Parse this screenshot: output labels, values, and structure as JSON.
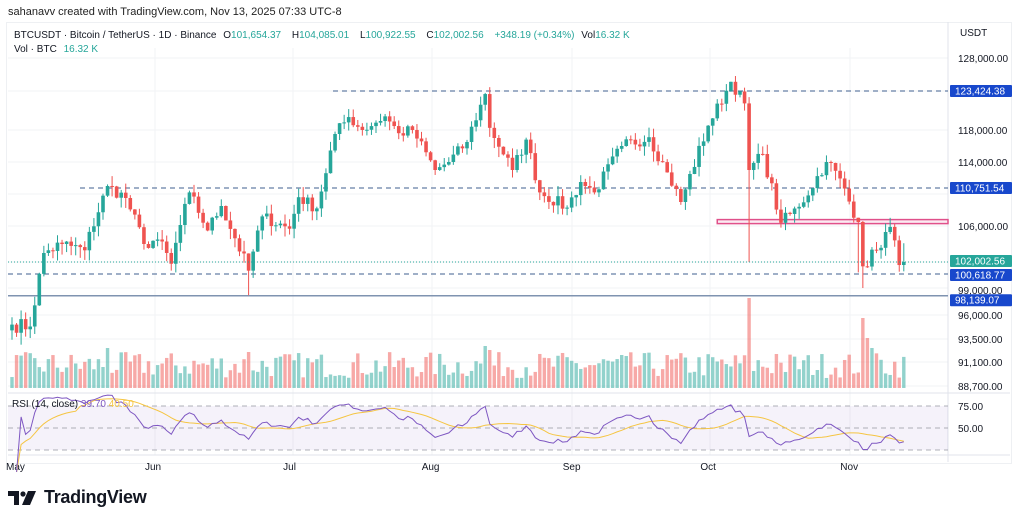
{
  "credit": "sahanavv created with TradingView.com, Nov 13, 2025 07:33 UTC-8",
  "legend": {
    "symbol": "BTCUSDT · Bitcoin / TetherUS · 1D · Binance",
    "o_label": "O",
    "o": "101,654.37",
    "h_label": "H",
    "h": "104,085.01",
    "l_label": "L",
    "l": "100,922.55",
    "c_label": "C",
    "c": "102,002.56",
    "change": "+348.19 (+0.34%)",
    "vol_label": "Vol",
    "vol": "16.32 K",
    "vol_row_label": "Vol · BTC",
    "vol_row_value": "16.32 K"
  },
  "rsi": {
    "label": "RSI (14, close)",
    "value": "39.70",
    "ma_value": "40.50",
    "line_color": "#7e57c2",
    "ma_color": "#f5c542"
  },
  "logo_text": "TradingView",
  "chart_data": {
    "type": "candlestick",
    "currency_label": "USDT",
    "x_tick_labels": [
      "May",
      "Jun",
      "Jul",
      "Aug",
      "Sep",
      "Oct",
      "Nov"
    ],
    "y_tick_labels": [
      "128,000.00",
      "118,000.00",
      "114,000.00",
      "106,000.00",
      "99,000.00",
      "96,000.00",
      "93,500.00",
      "91,100.00",
      "88,700.00"
    ],
    "rsi_tick_labels": [
      "75.00",
      "50.00"
    ],
    "colors": {
      "up": "#26a69a",
      "down": "#ef5350",
      "level": "#1848cc",
      "zone": "#e0508a"
    },
    "closes": [
      [
        "2025-05-01",
        95000
      ],
      [
        "2025-05-05",
        94800
      ],
      [
        "2025-05-08",
        103000
      ],
      [
        "2025-05-12",
        104000
      ],
      [
        "2025-05-17",
        103300
      ],
      [
        "2025-05-22",
        111000
      ],
      [
        "2025-05-26",
        109500
      ],
      [
        "2025-05-30",
        104000
      ],
      [
        "2025-06-02",
        104500
      ],
      [
        "2025-06-05",
        101800
      ],
      [
        "2025-06-09",
        110200
      ],
      [
        "2025-06-13",
        105500
      ],
      [
        "2025-06-16",
        108500
      ],
      [
        "2025-06-22",
        101000
      ],
      [
        "2025-06-25",
        107200
      ],
      [
        "2025-07-01",
        105700
      ],
      [
        "2025-07-03",
        109600
      ],
      [
        "2025-07-07",
        108200
      ],
      [
        "2025-07-11",
        117500
      ],
      [
        "2025-07-14",
        119800
      ],
      [
        "2025-07-17",
        118000
      ],
      [
        "2025-07-22",
        119900
      ],
      [
        "2025-07-25",
        117600
      ],
      [
        "2025-07-28",
        118000
      ],
      [
        "2025-08-02",
        113000
      ],
      [
        "2025-08-05",
        114000
      ],
      [
        "2025-08-09",
        116500
      ],
      [
        "2025-08-13",
        123000
      ],
      [
        "2025-08-14",
        118300
      ],
      [
        "2025-08-19",
        113000
      ],
      [
        "2025-08-22",
        116800
      ],
      [
        "2025-08-25",
        110200
      ],
      [
        "2025-08-31",
        108300
      ],
      [
        "2025-09-03",
        111500
      ],
      [
        "2025-09-06",
        110200
      ],
      [
        "2025-09-12",
        116000
      ],
      [
        "2025-09-18",
        117100
      ],
      [
        "2025-09-22",
        112700
      ],
      [
        "2025-09-25",
        109000
      ],
      [
        "2025-10-01",
        118600
      ],
      [
        "2025-10-06",
        124700
      ],
      [
        "2025-10-09",
        121700
      ],
      [
        "2025-10-10",
        113000
      ],
      [
        "2025-10-13",
        115000
      ],
      [
        "2025-10-17",
        106400
      ],
      [
        "2025-10-21",
        108400
      ],
      [
        "2025-10-27",
        114000
      ],
      [
        "2025-10-29",
        112900
      ],
      [
        "2025-11-03",
        106500
      ],
      [
        "2025-11-04",
        101500
      ],
      [
        "2025-11-07",
        103300
      ],
      [
        "2025-11-10",
        105900
      ],
      [
        "2025-11-12",
        101650
      ],
      [
        "2025-11-13",
        102002.56
      ]
    ],
    "last_candle": {
      "open": 101654.37,
      "high": 104085.01,
      "low": 100922.55,
      "close": 102002.56
    },
    "horizontal_levels": [
      {
        "label": "123,424.38",
        "value": 123424.38,
        "style": "dashed"
      },
      {
        "label": "110,751.54",
        "value": 110751.54,
        "style": "dashed"
      },
      {
        "label": "100,618.77",
        "value": 100618.77,
        "style": "dashed"
      },
      {
        "label": "98,139.07",
        "value": 98139.07,
        "style": "solid"
      }
    ],
    "current_price_label": "102,002.56",
    "zone": {
      "low": 106300,
      "high": 106800,
      "start": "2025-10-03"
    }
  }
}
